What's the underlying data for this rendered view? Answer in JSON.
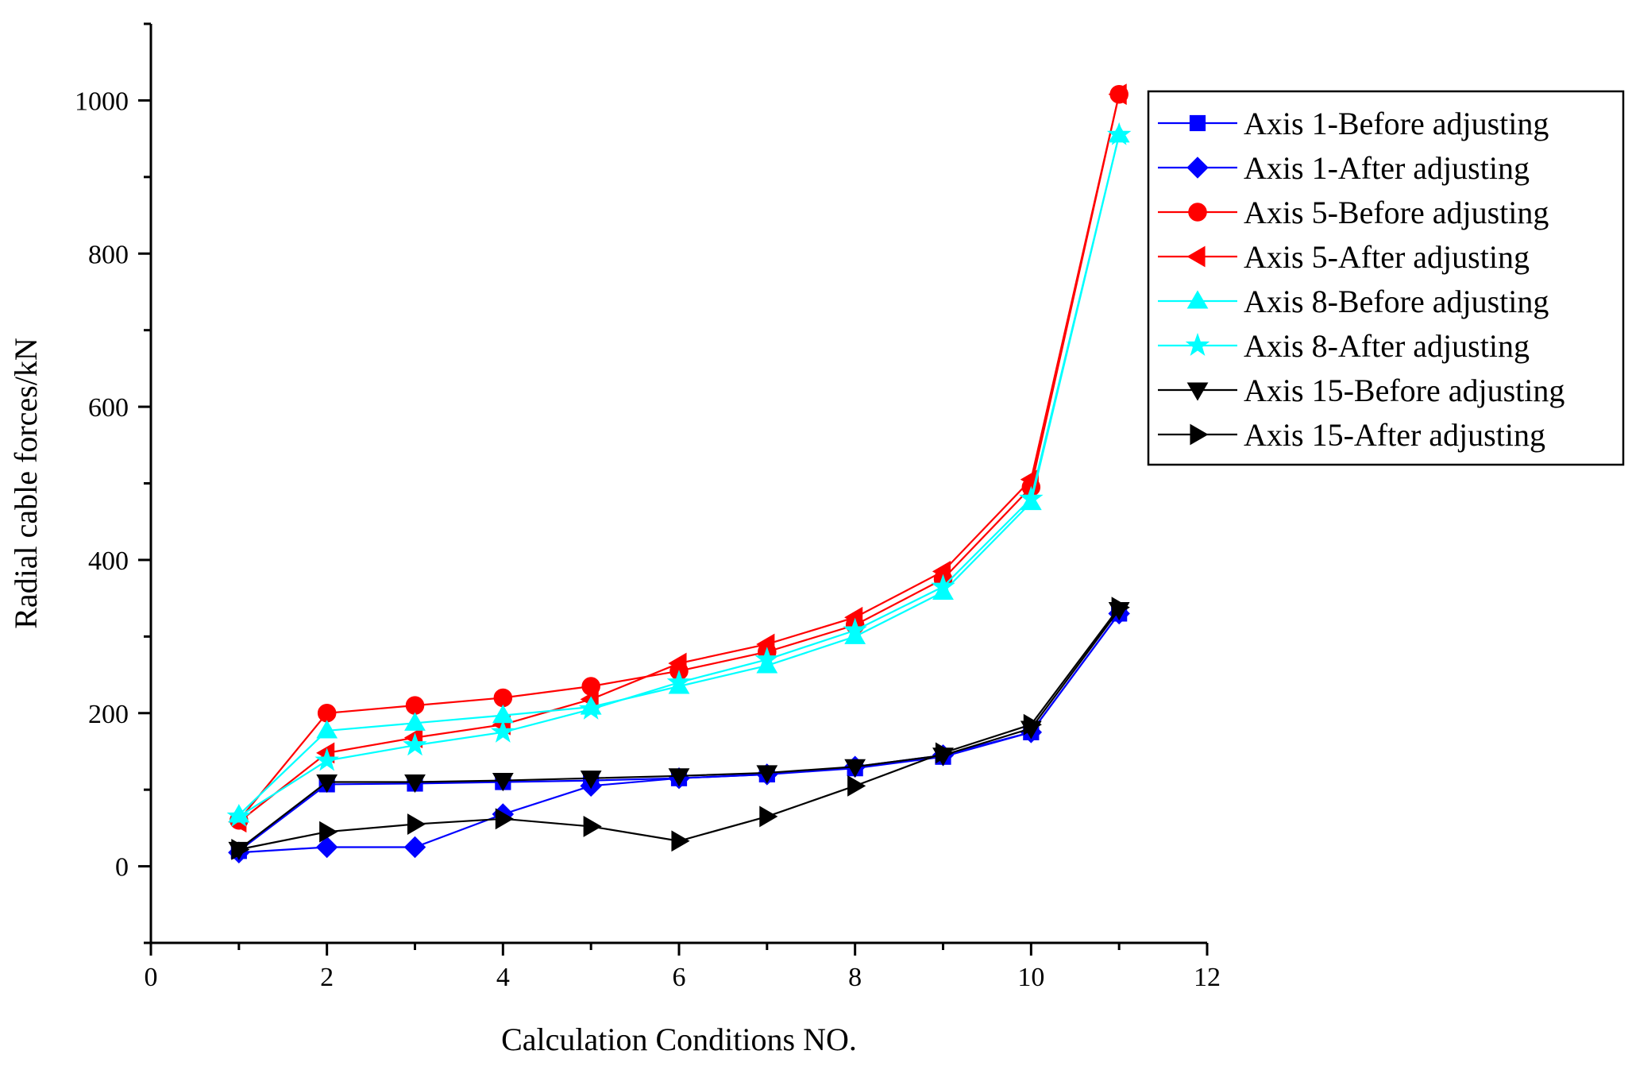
{
  "chart_data": {
    "type": "line",
    "title": "",
    "xlabel": "Calculation Conditions NO.",
    "ylabel": "Radial cable forces/kN",
    "xlim": [
      0,
      12
    ],
    "ylim": [
      -100,
      1100
    ],
    "xticks": [
      0,
      2,
      4,
      6,
      8,
      10,
      12
    ],
    "yticks": [
      0,
      200,
      400,
      600,
      800,
      1000
    ],
    "legend_position": "top-right",
    "grid": false,
    "x": [
      1,
      2,
      3,
      4,
      5,
      6,
      7,
      8,
      9,
      10,
      11
    ],
    "series": [
      {
        "name": "Axis 1-Before adjusting",
        "color": "#0000ff",
        "marker": "square",
        "values": [
          20,
          107,
          108,
          110,
          112,
          115,
          120,
          128,
          143,
          175,
          330
        ]
      },
      {
        "name": "Axis 1-After adjusting",
        "color": "#0000ff",
        "marker": "diamond",
        "values": [
          18,
          25,
          25,
          68,
          105,
          115,
          120,
          130,
          145,
          175,
          330
        ]
      },
      {
        "name": "Axis 5-Before adjusting",
        "color": "#ff0000",
        "marker": "circle",
        "values": [
          60,
          200,
          210,
          220,
          235,
          255,
          280,
          315,
          375,
          495,
          1008
        ]
      },
      {
        "name": "Axis 5-After adjusting",
        "color": "#ff0000",
        "marker": "triangle-left",
        "values": [
          58,
          148,
          168,
          185,
          218,
          265,
          290,
          325,
          385,
          505,
          1008
        ]
      },
      {
        "name": "Axis 8-Before adjusting",
        "color": "#00ffff",
        "marker": "triangle-up",
        "values": [
          67,
          177,
          187,
          197,
          208,
          235,
          262,
          300,
          358,
          475,
          955
        ]
      },
      {
        "name": "Axis 8-After adjusting",
        "color": "#00ffff",
        "marker": "star",
        "values": [
          65,
          138,
          158,
          175,
          205,
          240,
          270,
          308,
          365,
          480,
          955
        ]
      },
      {
        "name": "Axis 15-Before adjusting",
        "color": "#000000",
        "marker": "triangle-down",
        "values": [
          22,
          110,
          110,
          112,
          115,
          118,
          122,
          130,
          145,
          180,
          335
        ]
      },
      {
        "name": "Axis 15-After adjusting",
        "color": "#000000",
        "marker": "triangle-right",
        "values": [
          22,
          45,
          55,
          62,
          52,
          33,
          65,
          105,
          148,
          185,
          338
        ]
      }
    ]
  }
}
